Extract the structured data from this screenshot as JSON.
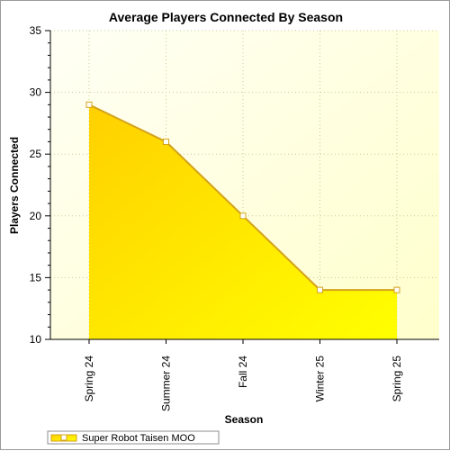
{
  "chart_data": {
    "type": "area",
    "title": "Average Players Connected By Season",
    "xlabel": "Season",
    "ylabel": "Players Connected",
    "categories": [
      "Spring 24",
      "Summer 24",
      "Fall 24",
      "Winter 25",
      "Spring 25"
    ],
    "series": [
      {
        "name": "Super Robot Taisen MOO",
        "values": [
          29,
          26,
          20,
          14,
          14
        ]
      }
    ],
    "ylim": [
      10,
      35
    ],
    "yticks": [
      10,
      15,
      20,
      25,
      30,
      35
    ],
    "grid": true,
    "legend": "bottom-left",
    "colors": {
      "area_top": "#ffd200",
      "area_bottom": "#ffff00",
      "line": "#d4a21a",
      "plot_bg_light": "#fffff5",
      "plot_bg_dark": "#ffffcc",
      "grid": "#c8c8a0"
    }
  }
}
